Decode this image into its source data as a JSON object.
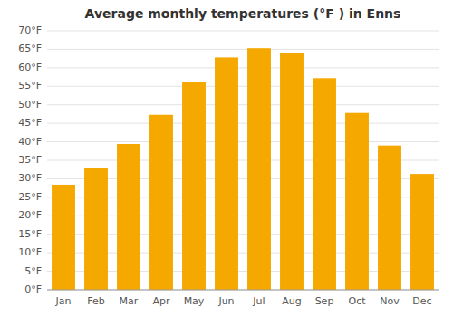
{
  "chart_data": {
    "type": "bar",
    "title": "Average monthly temperatures (°F ) in Enns",
    "categories": [
      "Jan",
      "Feb",
      "Mar",
      "Apr",
      "May",
      "Jun",
      "Jul",
      "Aug",
      "Sep",
      "Oct",
      "Nov",
      "Dec"
    ],
    "values": [
      28.4,
      32.9,
      39.4,
      47.3,
      56.1,
      62.8,
      65.3,
      64.0,
      57.2,
      47.8,
      39.0,
      31.3
    ],
    "color": "#F5A800",
    "ylim": [
      0,
      70
    ],
    "yticks": [
      {
        "value": 0,
        "label": "0°F"
      },
      {
        "value": 5,
        "label": "5°F"
      },
      {
        "value": 10,
        "label": "10°F"
      },
      {
        "value": 15,
        "label": "15°F"
      },
      {
        "value": 20,
        "label": "20°F"
      },
      {
        "value": 25,
        "label": "25°F"
      },
      {
        "value": 30,
        "label": "30°F"
      },
      {
        "value": 35,
        "label": "35°F"
      },
      {
        "value": 40,
        "label": "40°F"
      },
      {
        "value": 45,
        "label": "45°F"
      },
      {
        "value": 50,
        "label": "50°F"
      },
      {
        "value": 55,
        "label": "55°F"
      },
      {
        "value": 60,
        "label": "60°F"
      },
      {
        "value": 65,
        "label": "65°F"
      },
      {
        "value": 70,
        "label": "70°F"
      }
    ],
    "grid": true
  }
}
